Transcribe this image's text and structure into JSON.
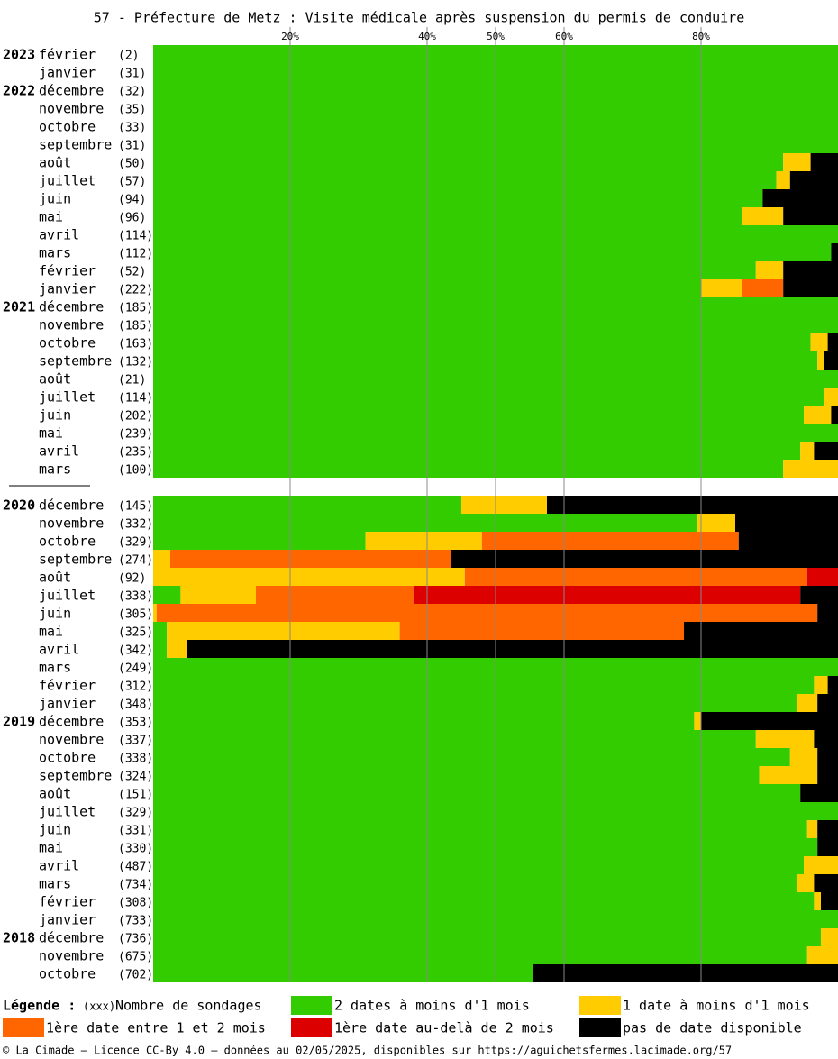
{
  "chart_data": {
    "type": "bar",
    "orientation": "horizontal",
    "stacked": true,
    "title": "57 - Préfecture de Metz : Visite médicale après suspension du permis de conduire",
    "years": [
      "2023",
      null,
      "2022",
      null,
      null,
      null,
      null,
      null,
      null,
      null,
      null,
      null,
      null,
      null,
      "2021",
      null,
      null,
      null,
      null,
      null,
      null,
      null,
      null,
      null,
      "2020",
      null,
      null,
      null,
      null,
      null,
      null,
      null,
      null,
      null,
      null,
      null,
      "2019",
      null,
      null,
      null,
      null,
      null,
      null,
      null,
      null,
      null,
      null,
      null,
      "2018",
      null,
      null
    ],
    "categories": [
      "février",
      "janvier",
      "décembre",
      "novembre",
      "octobre",
      "septembre",
      "août",
      "juillet",
      "juin",
      "mai",
      "avril",
      "mars",
      "février",
      "janvier",
      "décembre",
      "novembre",
      "octobre",
      "septembre",
      "août",
      "juillet",
      "juin",
      "mai",
      "avril",
      "mars",
      "décembre",
      "novembre",
      "octobre",
      "septembre",
      "août",
      "juillet",
      "juin",
      "mai",
      "avril",
      "mars",
      "février",
      "janvier",
      "décembre",
      "novembre",
      "octobre",
      "septembre",
      "août",
      "juillet",
      "juin",
      "mai",
      "avril",
      "mars",
      "février",
      "janvier",
      "décembre",
      "novembre",
      "octobre"
    ],
    "counts": [
      "(2)",
      "(31)",
      "(32)",
      "(35)",
      "(33)",
      "(31)",
      "(50)",
      "(57)",
      "(94)",
      "(96)",
      "(114)",
      "(112)",
      "(52)",
      "(222)",
      "(185)",
      "(185)",
      "(163)",
      "(132)",
      "(21)",
      "(114)",
      "(202)",
      "(239)",
      "(235)",
      "(100)",
      "(145)",
      "(332)",
      "(329)",
      "(274)",
      "(92)",
      "(338)",
      "(305)",
      "(325)",
      "(342)",
      "(249)",
      "(312)",
      "(348)",
      "(353)",
      "(337)",
      "(338)",
      "(324)",
      "(151)",
      "(329)",
      "(331)",
      "(330)",
      "(487)",
      "(734)",
      "(308)",
      "(733)",
      "(736)",
      "(675)",
      "(702)"
    ],
    "series": [
      {
        "name": "2 dates à moins d'1 mois",
        "color": "#33cc00",
        "values": [
          100,
          100,
          100,
          100,
          100,
          100,
          92,
          91,
          89,
          86,
          100,
          99,
          88,
          80,
          100,
          100,
          96,
          97,
          100,
          98,
          95,
          100,
          94.5,
          92,
          45,
          79.5,
          31,
          0,
          0,
          4,
          0,
          2,
          2,
          100,
          96.5,
          94,
          79,
          88,
          93,
          88.5,
          94.5,
          100,
          95.5,
          97,
          95,
          94,
          96.5,
          100,
          97.5,
          95.5,
          55.5
        ]
      },
      {
        "name": "1 date à moins d'1 mois",
        "color": "#ffcc00",
        "values": [
          0,
          0,
          0,
          0,
          0,
          0,
          4,
          2,
          0,
          6,
          0,
          0,
          4,
          6,
          0,
          0,
          2.5,
          1,
          0,
          2,
          4,
          0,
          2,
          8,
          12.5,
          5.5,
          17,
          2.5,
          45.5,
          11,
          0.5,
          34,
          3,
          0,
          2,
          3,
          1,
          8.5,
          4,
          8.5,
          0,
          0,
          1.5,
          0,
          5,
          2.5,
          1,
          0,
          2.5,
          4.5,
          0
        ]
      },
      {
        "name": "1ère date entre 1 et 2 mois",
        "color": "#ff6600",
        "values": [
          0,
          0,
          0,
          0,
          0,
          0,
          0,
          0,
          0,
          0,
          0,
          0,
          0,
          6,
          0,
          0,
          0,
          0,
          0,
          0,
          0,
          0,
          0,
          0,
          0,
          0,
          37.5,
          41,
          50,
          23,
          96.5,
          41.5,
          0,
          0,
          0,
          0,
          0,
          0,
          0,
          0,
          0,
          0,
          0,
          0,
          0,
          0,
          0,
          0,
          0,
          0,
          0
        ]
      },
      {
        "name": "1ère date au-delà de 2 mois",
        "color": "#dd0000",
        "values": [
          0,
          0,
          0,
          0,
          0,
          0,
          0,
          0,
          0,
          0,
          0,
          0,
          0,
          0,
          0,
          0,
          0,
          0,
          0,
          0,
          0,
          0,
          0,
          0,
          0,
          0,
          0,
          0,
          4.5,
          56.5,
          0,
          0,
          0,
          0,
          0,
          0,
          0,
          0,
          0,
          0,
          0,
          0,
          0,
          0,
          0,
          0,
          0,
          0,
          0,
          0,
          0
        ]
      },
      {
        "name": "pas de date disponible",
        "color": "#000000",
        "values": [
          0,
          0,
          0,
          0,
          0,
          0,
          4,
          7,
          11,
          8,
          0,
          1,
          8,
          8,
          0,
          0,
          1.5,
          2,
          0,
          0,
          1,
          0,
          3.5,
          0,
          42.5,
          15,
          14.5,
          56.5,
          0,
          5.5,
          3,
          22.5,
          95,
          0,
          1.5,
          3,
          20,
          3.5,
          3,
          3,
          5.5,
          0,
          3,
          3,
          0,
          3.5,
          2.5,
          0,
          0,
          0,
          44.5
        ]
      }
    ],
    "xlim": [
      0,
      100
    ],
    "xticks": [
      {
        "value": 20,
        "label": "20%"
      },
      {
        "value": 40,
        "label": "40%"
      },
      {
        "value": 50,
        "label": "50%"
      },
      {
        "value": 60,
        "label": "60%"
      },
      {
        "value": 80,
        "label": "80%"
      }
    ],
    "grid": true,
    "legend_title": "Légende :",
    "legend_count_sample": "(xxx)",
    "legend_count_label": "Nombre de sondages",
    "footer": "© La Cimade — Licence CC-By 4.0 — données au 02/05/2025, disponibles sur https://aguichetsfermes.lacimade.org/57"
  }
}
